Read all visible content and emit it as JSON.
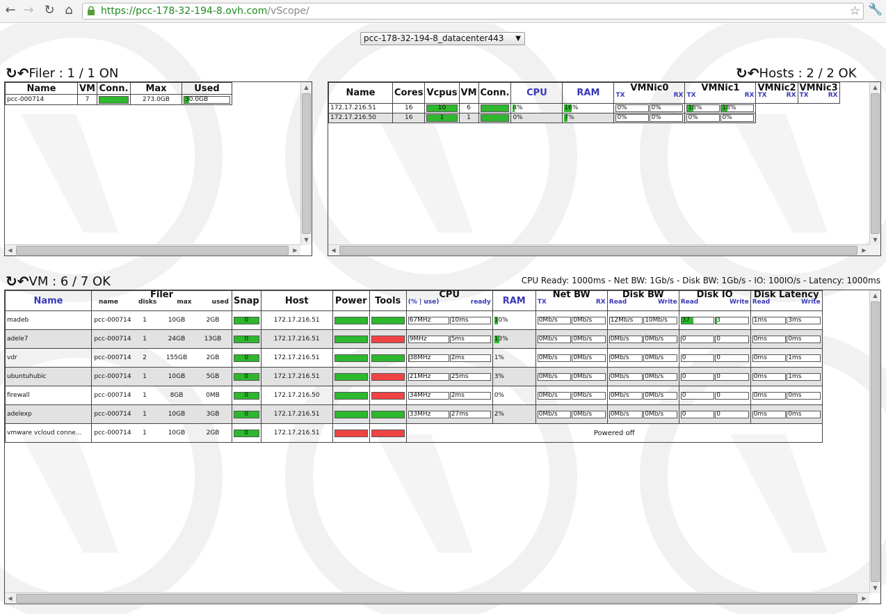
{
  "browser": {
    "url_host": "https://pcc-178-32-194-8.ovh.com",
    "url_path": "/vScope/"
  },
  "datacenter_select": {
    "selected": "pcc-178-32-194-8_datacenter443"
  },
  "filer": {
    "title": "Filer : 1 / 1 ON",
    "columns": [
      "Name",
      "VM",
      "Conn.",
      "Max",
      "Used"
    ],
    "rows": [
      {
        "name": "pcc-000714",
        "vm": "7",
        "conn": 100,
        "max": "273.0GB",
        "used": "30.0GB",
        "used_pct": 11
      }
    ]
  },
  "hosts": {
    "title": "Hosts : 2 / 2 OK",
    "columns": [
      "Name",
      "Cores",
      "Vcpus",
      "VM",
      "Conn.",
      "CPU",
      "RAM",
      "VMNic0",
      "VMNic1",
      "VMNic2",
      "VMNic3"
    ],
    "tx": "TX",
    "rx": "RX",
    "rows": [
      {
        "name": "172.17.216.51",
        "cores": "16",
        "vcpus": "10",
        "vm": "6",
        "cpu": "4%",
        "cpu_pct": 4,
        "ram": "16%",
        "ram_pct": 16,
        "nic0_tx": "0%",
        "nic0_rx": "0%",
        "nic1_tx": "18%",
        "nic1_rx": "18%",
        "nic1_pct": 18
      },
      {
        "name": "172.17.216.50",
        "cores": "16",
        "vcpus": "1",
        "vm": "1",
        "cpu": "0%",
        "cpu_pct": 0,
        "ram": "7%",
        "ram_pct": 7,
        "nic0_tx": "0%",
        "nic0_rx": "0%",
        "nic1_tx": "0%",
        "nic1_rx": "0%",
        "nic1_pct": 0
      }
    ]
  },
  "vm": {
    "title": "VM : 6 / 7 OK",
    "thresholds": "CPU Ready: 1000ms - Net BW: 1Gb/s - Disk BW: 1Gb/s - IO: 100IO/s - Latency: 1000ms",
    "headers": {
      "name": "Name",
      "filer": "Filer",
      "filer_name": "name",
      "filer_disks": "disks",
      "filer_max": "max",
      "filer_used": "used",
      "snap": "Snap",
      "host": "Host",
      "power": "Power",
      "tools": "Tools",
      "cpu": "CPU",
      "cpu_use": "(% | use)",
      "cpu_ready": "ready",
      "ram": "RAM",
      "netbw": "Net BW",
      "tx": "TX",
      "rx": "RX",
      "diskbw": "Disk BW",
      "read": "Read",
      "write": "Write",
      "diskio": "Disk IO",
      "latency": "Disk Latency"
    },
    "powered_off": "Powered off",
    "rows": [
      {
        "name": "madeb",
        "filer": "pcc-000714",
        "disks": "1",
        "max": "10GB",
        "used": "2GB",
        "snap": "0",
        "host": "172.17.216.51",
        "power": "on",
        "tools": "on",
        "cpu": "67MHz",
        "cpu_pct": 0,
        "ready": "10ms",
        "ram": "10%",
        "ram_pct": 10,
        "net_tx": "0Mb/s",
        "net_rx": "0Mb/s",
        "dbw_r": "12Mb/s",
        "dbw_w": "10Mb/s",
        "io_r": "37",
        "io_r_pct": 37,
        "io_w": "3",
        "io_w_pct": 3,
        "lat_r": "1ms",
        "lat_w": "3ms"
      },
      {
        "name": "adele7",
        "filer": "pcc-000714",
        "disks": "1",
        "max": "24GB",
        "used": "13GB",
        "snap": "0",
        "host": "172.17.216.51",
        "power": "on",
        "tools": "off",
        "cpu": "9MHz",
        "cpu_pct": 0,
        "ready": "5ms",
        "ram": "13%",
        "ram_pct": 13,
        "net_tx": "0Mb/s",
        "net_rx": "0Mb/s",
        "dbw_r": "0Mb/s",
        "dbw_w": "0Mb/s",
        "io_r": "0",
        "io_r_pct": 0,
        "io_w": "0",
        "io_w_pct": 0,
        "lat_r": "0ms",
        "lat_w": "0ms"
      },
      {
        "name": "vdr",
        "filer": "pcc-000714",
        "disks": "2",
        "max": "155GB",
        "used": "2GB",
        "snap": "0",
        "host": "172.17.216.51",
        "power": "on",
        "tools": "on",
        "cpu": "38MHz",
        "cpu_pct": 2,
        "ready": "2ms",
        "ram": "1%",
        "ram_pct": 0,
        "net_tx": "0Mb/s",
        "net_rx": "0Mb/s",
        "dbw_r": "0Mb/s",
        "dbw_w": "0Mb/s",
        "io_r": "0",
        "io_r_pct": 0,
        "io_w": "0",
        "io_w_pct": 0,
        "lat_r": "0ms",
        "lat_w": "1ms"
      },
      {
        "name": "ubuntuhubic",
        "filer": "pcc-000714",
        "disks": "1",
        "max": "10GB",
        "used": "5GB",
        "snap": "0",
        "host": "172.17.216.51",
        "power": "on",
        "tools": "off",
        "cpu": "21MHz",
        "cpu_pct": 0,
        "ready": "25ms",
        "ram": "3%",
        "ram_pct": 0,
        "net_tx": "0Mb/s",
        "net_rx": "0Mb/s",
        "dbw_r": "0Mb/s",
        "dbw_w": "0Mb/s",
        "io_r": "0",
        "io_r_pct": 0,
        "io_w": "0",
        "io_w_pct": 0,
        "lat_r": "0ms",
        "lat_w": "1ms"
      },
      {
        "name": "firewall",
        "filer": "pcc-000714",
        "disks": "1",
        "max": "8GB",
        "used": "0MB",
        "snap": "0",
        "host": "172.17.216.50",
        "power": "on",
        "tools": "off",
        "cpu": "34MHz",
        "cpu_pct": 0,
        "ready": "2ms",
        "ram": "0%",
        "ram_pct": 0,
        "net_tx": "0Mb/s",
        "net_rx": "0Mb/s",
        "dbw_r": "0Mb/s",
        "dbw_w": "0Mb/s",
        "io_r": "0",
        "io_r_pct": 0,
        "io_w": "0",
        "io_w_pct": 0,
        "lat_r": "0ms",
        "lat_w": "0ms"
      },
      {
        "name": "adelexp",
        "filer": "pcc-000714",
        "disks": "1",
        "max": "10GB",
        "used": "3GB",
        "snap": "0",
        "host": "172.17.216.51",
        "power": "on",
        "tools": "on",
        "cpu": "33MHz",
        "cpu_pct": 0,
        "ready": "27ms",
        "ram": "2%",
        "ram_pct": 0,
        "net_tx": "0Mb/s",
        "net_rx": "0Mb/s",
        "dbw_r": "0Mb/s",
        "dbw_w": "0Mb/s",
        "io_r": "0",
        "io_r_pct": 0,
        "io_w": "0",
        "io_w_pct": 0,
        "lat_r": "0ms",
        "lat_w": "0ms"
      },
      {
        "name": "vmware vcloud conne...",
        "filer": "pcc-000714",
        "disks": "1",
        "max": "10GB",
        "used": "2GB",
        "snap": "0",
        "host": "172.17.216.51",
        "power": "off",
        "tools": "off",
        "off": true
      }
    ]
  }
}
